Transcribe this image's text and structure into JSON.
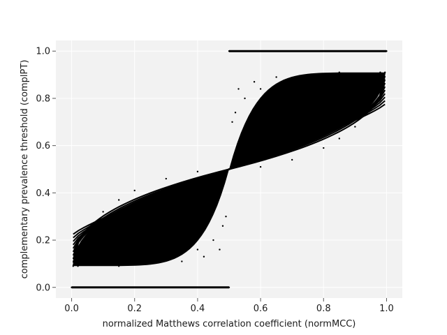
{
  "chart_data": {
    "type": "scatter",
    "title": "",
    "xlabel": "normalized Matthews correlation coefficient (normMCC)",
    "ylabel": "complementary prevalence threshold (complPT)",
    "xlim": [
      -0.05,
      1.05
    ],
    "ylim": [
      -0.045,
      1.045
    ],
    "xticks": [
      0.0,
      0.2,
      0.4,
      0.6,
      0.8,
      1.0
    ],
    "yticks": [
      0.0,
      0.2,
      0.4,
      0.6,
      0.8,
      1.0
    ],
    "xtick_labels": [
      "0.0",
      "0.2",
      "0.4",
      "0.6",
      "0.8",
      "1.0"
    ],
    "ytick_labels": [
      "0.0",
      "0.2",
      "0.4",
      "0.6",
      "0.8",
      "1.0"
    ],
    "grid": true,
    "background": "#f2f2f2",
    "marker_color": "#000000",
    "series": [
      {
        "points": [
          [
            0.0,
            0.0
          ],
          [
            0.1,
            0.0
          ],
          [
            0.2,
            0.0
          ],
          [
            0.3,
            0.0
          ],
          [
            0.4,
            0.0
          ],
          [
            0.5,
            0.0
          ],
          [
            0.5,
            1.0
          ],
          [
            0.6,
            1.0
          ],
          [
            0.7,
            1.0
          ],
          [
            0.8,
            1.0
          ],
          [
            0.9,
            1.0
          ],
          [
            1.0,
            1.0
          ],
          [
            0.005,
            0.09
          ],
          [
            0.02,
            0.15
          ],
          [
            0.05,
            0.24
          ],
          [
            0.1,
            0.32
          ],
          [
            0.15,
            0.37
          ],
          [
            0.2,
            0.41
          ],
          [
            0.3,
            0.46
          ],
          [
            0.4,
            0.49
          ],
          [
            0.5,
            0.5
          ],
          [
            0.02,
            0.09
          ],
          [
            0.1,
            0.1
          ],
          [
            0.2,
            0.11
          ],
          [
            0.3,
            0.13
          ],
          [
            0.4,
            0.16
          ],
          [
            0.45,
            0.2
          ],
          [
            0.48,
            0.26
          ],
          [
            0.5,
            0.5
          ],
          [
            0.15,
            0.09
          ],
          [
            0.25,
            0.1
          ],
          [
            0.35,
            0.11
          ],
          [
            0.42,
            0.13
          ],
          [
            0.47,
            0.16
          ],
          [
            0.49,
            0.3
          ],
          [
            0.5,
            0.5
          ],
          [
            0.2,
            0.2
          ],
          [
            0.25,
            0.25
          ],
          [
            0.3,
            0.3
          ],
          [
            0.35,
            0.35
          ],
          [
            0.4,
            0.4
          ],
          [
            0.45,
            0.45
          ],
          [
            0.995,
            0.91
          ],
          [
            0.98,
            0.85
          ],
          [
            0.95,
            0.76
          ],
          [
            0.9,
            0.68
          ],
          [
            0.85,
            0.63
          ],
          [
            0.8,
            0.59
          ],
          [
            0.7,
            0.54
          ],
          [
            0.6,
            0.51
          ],
          [
            0.5,
            0.5
          ],
          [
            0.98,
            0.91
          ],
          [
            0.9,
            0.9
          ],
          [
            0.8,
            0.89
          ],
          [
            0.7,
            0.87
          ],
          [
            0.6,
            0.84
          ],
          [
            0.55,
            0.8
          ],
          [
            0.52,
            0.74
          ],
          [
            0.5,
            0.5
          ],
          [
            0.85,
            0.91
          ],
          [
            0.75,
            0.9
          ],
          [
            0.65,
            0.89
          ],
          [
            0.58,
            0.87
          ],
          [
            0.53,
            0.84
          ],
          [
            0.51,
            0.7
          ],
          [
            0.5,
            0.5
          ],
          [
            0.55,
            0.55
          ],
          [
            0.6,
            0.6
          ],
          [
            0.65,
            0.65
          ],
          [
            0.7,
            0.7
          ],
          [
            0.75,
            0.75
          ],
          [
            0.8,
            0.8
          ]
        ]
      }
    ]
  }
}
